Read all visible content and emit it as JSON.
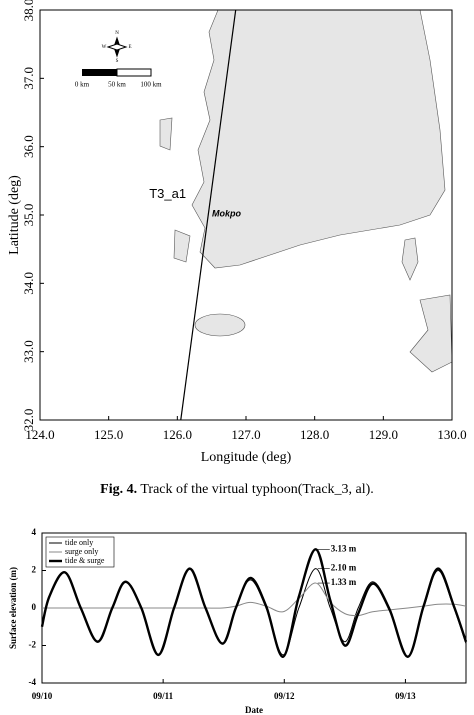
{
  "chart_data": [
    {
      "type": "map",
      "xlabel": "Longitude (deg)",
      "ylabel": "Latitude (deg)",
      "xlim": [
        124,
        130
      ],
      "ylim": [
        32,
        38
      ],
      "xticks": [
        {
          "value": 124,
          "label": "124.0"
        },
        {
          "value": 125,
          "label": "125.0"
        },
        {
          "value": 126,
          "label": "126.0"
        },
        {
          "value": 127,
          "label": "127.0"
        },
        {
          "value": 128,
          "label": "128.0"
        },
        {
          "value": 129,
          "label": "129.0"
        },
        {
          "value": 130,
          "label": "130.0"
        }
      ],
      "yticks": [
        {
          "value": 32,
          "label": "32.0"
        },
        {
          "value": 33,
          "label": "33.0"
        },
        {
          "value": 34,
          "label": "34.0"
        },
        {
          "value": 35,
          "label": "35.0"
        },
        {
          "value": 36,
          "label": "36.0"
        },
        {
          "value": 37,
          "label": "37.0"
        },
        {
          "value": 38,
          "label": "38.0"
        }
      ],
      "series": [
        {
          "name": "T3_a1",
          "color": "#000000",
          "x": [
            126.05,
            126.85
          ],
          "y": [
            32.0,
            38.0
          ]
        }
      ],
      "place_label": "Mokpo",
      "scale_labels": [
        "0 km",
        "50 km",
        "100 km"
      ],
      "compass": [
        "N",
        "E",
        "S",
        "W"
      ]
    },
    {
      "type": "line",
      "xlabel": "Date",
      "ylabel": "Surface elevation (m)",
      "xlim": [
        0,
        3.5
      ],
      "ylim": [
        -4,
        4
      ],
      "xticks": [
        {
          "value": 0,
          "label": "09/10"
        },
        {
          "value": 1,
          "label": "09/11"
        },
        {
          "value": 2,
          "label": "09/12"
        },
        {
          "value": 3,
          "label": "09/13"
        }
      ],
      "yticks": [
        -4,
        -2,
        0,
        2,
        4
      ],
      "legend": "upper left",
      "x": [
        0,
        0.06,
        0.19,
        0.32,
        0.46,
        0.58,
        0.69,
        0.82,
        0.96,
        1.09,
        1.22,
        1.35,
        1.49,
        1.6,
        1.72,
        1.85,
        1.99,
        2.12,
        2.26,
        2.38,
        2.5,
        2.61,
        2.73,
        2.87,
        3.02,
        3.15,
        3.27,
        3.4,
        3.5
      ],
      "series": [
        {
          "name": "tide only",
          "color": "#000000",
          "line_width": 1,
          "values": [
            -1.0,
            0.6,
            1.9,
            0,
            -1.8,
            0,
            1.4,
            0,
            -2.5,
            0,
            2.1,
            0,
            -1.9,
            0,
            1.5,
            0,
            -2.5,
            0,
            2.1,
            0,
            -1.8,
            0,
            1.4,
            0,
            -2.6,
            0,
            2.0,
            0,
            -1.9
          ],
          "value_labels": [
            null,
            null,
            null,
            null,
            null,
            null,
            null,
            null,
            null,
            null,
            null,
            null,
            null,
            null,
            null,
            null,
            null,
            null,
            "2.10 m",
            null,
            null,
            null,
            null,
            null,
            null,
            null,
            null,
            null,
            null
          ]
        },
        {
          "name": "surge only",
          "color": "#888888",
          "line_width": 1,
          "values": [
            0,
            0,
            0,
            0,
            0,
            0,
            0,
            0,
            0,
            0,
            0,
            0,
            0,
            0.1,
            0.3,
            0.1,
            -0.2,
            0.5,
            1.33,
            0.3,
            -0.3,
            -0.4,
            -0.2,
            -0.1,
            0,
            0.1,
            0.2,
            0.2,
            0.1
          ],
          "value_labels": [
            null,
            null,
            null,
            null,
            null,
            null,
            null,
            null,
            null,
            null,
            null,
            null,
            null,
            null,
            null,
            null,
            null,
            null,
            "1.33 m",
            null,
            null,
            null,
            null,
            null,
            null,
            null,
            null,
            null,
            null
          ]
        },
        {
          "name": "tide & surge",
          "color": "#000000",
          "line_width": 2.4,
          "values": [
            -1.0,
            0.6,
            1.9,
            0,
            -1.8,
            0,
            1.4,
            0,
            -2.5,
            0,
            2.1,
            0,
            -1.9,
            0,
            1.6,
            0.1,
            -2.6,
            0.6,
            3.13,
            0.4,
            -2.0,
            -0.3,
            1.3,
            -0.1,
            -2.6,
            0.1,
            2.1,
            0.1,
            -1.8
          ],
          "value_labels": [
            null,
            null,
            null,
            null,
            null,
            null,
            null,
            null,
            null,
            null,
            null,
            null,
            null,
            null,
            null,
            null,
            null,
            null,
            "3.13 m",
            null,
            null,
            null,
            null,
            null,
            null,
            null,
            null,
            null,
            null
          ]
        }
      ]
    }
  ],
  "caption": {
    "label": "Fig. 4.",
    "text": "Track of the virtual typhoon(Track_3, al)."
  }
}
